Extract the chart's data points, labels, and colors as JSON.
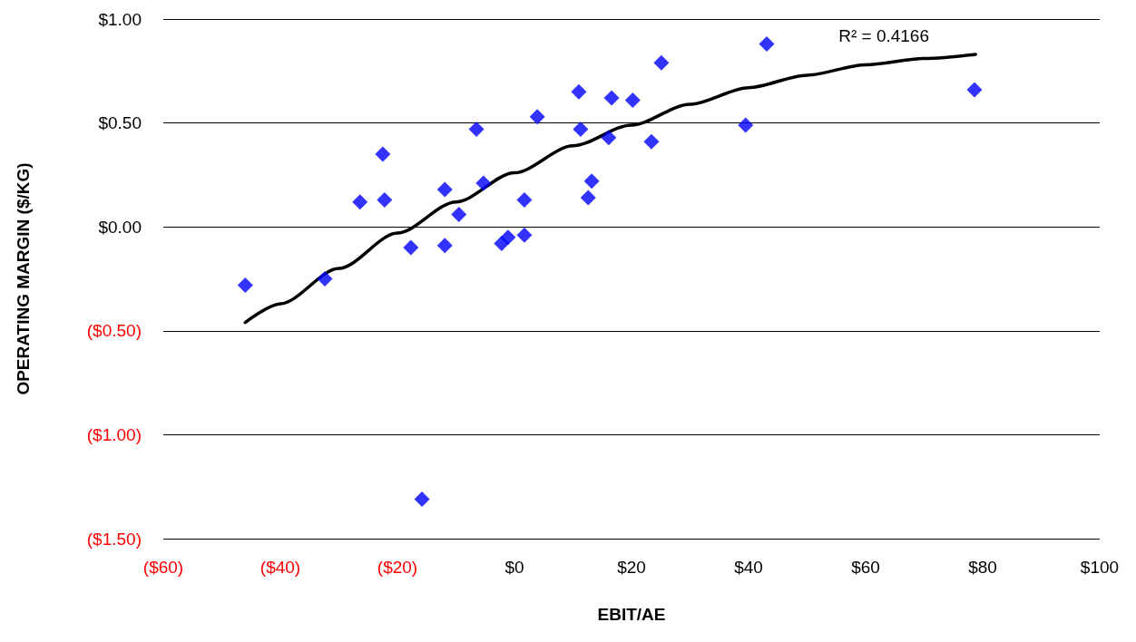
{
  "chart_data": {
    "type": "scatter",
    "xlabel": "EBIT/AE",
    "ylabel": "OPERATING MARGIN ($/KG)",
    "marker": "diamond",
    "grid": "y",
    "annotations": [
      "R² = 0.4166"
    ],
    "xlim": [
      -60,
      100
    ],
    "xticks": [
      {
        "value": -60,
        "label": "($60)"
      },
      {
        "value": -40,
        "label": "($40)"
      },
      {
        "value": -20,
        "label": "($20)"
      },
      {
        "value": 0,
        "label": "$0"
      },
      {
        "value": 20,
        "label": "$20"
      },
      {
        "value": 40,
        "label": "$40"
      },
      {
        "value": 60,
        "label": "$60"
      },
      {
        "value": 80,
        "label": "$80"
      },
      {
        "value": 100,
        "label": "$100"
      }
    ],
    "ylim": [
      -1.5,
      1
    ],
    "yticks": [
      {
        "value": -1.5,
        "label": "($1.50)"
      },
      {
        "value": -1,
        "label": "($1.00)"
      },
      {
        "value": -0.5,
        "label": "($0.50)"
      },
      {
        "value": 0,
        "label": "$0.00"
      },
      {
        "value": 0.5,
        "label": "$0.50"
      },
      {
        "value": 1,
        "label": "$1.00"
      }
    ],
    "series": [
      {
        "type": "scatter",
        "color": "#0000ff",
        "x": [
          -46,
          -32.4,
          -26.4,
          -22.5,
          -22.2,
          -17.7,
          -15.8,
          -11.9,
          -11.9,
          -9.5,
          -6.5,
          -5.3,
          -2.2,
          -1.1,
          1.7,
          1.7,
          3.9,
          11,
          11.3,
          12.6,
          13.2,
          16.1,
          16.6,
          20.2,
          23.4,
          25.1,
          39.5,
          43.1,
          78.6
        ],
        "values": [
          -0.28,
          -0.25,
          0.12,
          0.35,
          0.13,
          -0.1,
          -1.31,
          0.18,
          -0.09,
          0.06,
          0.47,
          0.21,
          -0.08,
          -0.05,
          -0.04,
          0.13,
          0.53,
          0.65,
          0.47,
          0.14,
          0.22,
          0.43,
          0.62,
          0.61,
          0.41,
          0.79,
          0.49,
          0.88,
          0.66
        ]
      },
      {
        "type": "line",
        "color": "#000000",
        "marker": "none",
        "x": [
          -46,
          -40,
          -30,
          -20,
          -10,
          0,
          10,
          20,
          30,
          40,
          50,
          60,
          70,
          78.8
        ],
        "values": [
          -0.46,
          -0.37,
          -0.2,
          -0.03,
          0.12,
          0.26,
          0.39,
          0.49,
          0.59,
          0.67,
          0.73,
          0.78,
          0.81,
          0.83
        ]
      }
    ]
  }
}
